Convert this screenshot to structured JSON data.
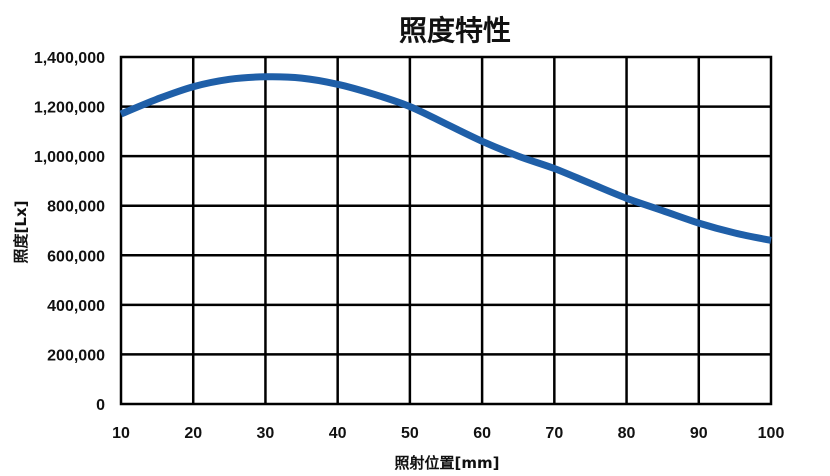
{
  "chart_data": {
    "type": "line",
    "title": "照度特性",
    "xlabel": "照射位置[mm]",
    "ylabel": "照度[Lx]",
    "xlim": [
      10,
      100
    ],
    "ylim": [
      0,
      1400000
    ],
    "x_ticks": [
      10,
      20,
      30,
      40,
      50,
      60,
      70,
      80,
      90,
      100
    ],
    "y_ticks": [
      0,
      200000,
      400000,
      600000,
      800000,
      1000000,
      1200000,
      1400000
    ],
    "y_tick_labels": [
      "0",
      "200,000",
      "400,000",
      "600,000",
      "800,000",
      "1,000,000",
      "1,200,000",
      "1,400,000"
    ],
    "grid": true,
    "line_color": "#1f5fa8",
    "series": [
      {
        "x": [
          10,
          15,
          20,
          25,
          30,
          35,
          40,
          45,
          50,
          55,
          60,
          65,
          70,
          75,
          80,
          85,
          90,
          95,
          100
        ],
        "values": [
          1170000,
          1230000,
          1280000,
          1310000,
          1320000,
          1315000,
          1290000,
          1250000,
          1200000,
          1130000,
          1060000,
          1000000,
          950000,
          890000,
          830000,
          780000,
          730000,
          690000,
          660000
        ]
      }
    ]
  }
}
